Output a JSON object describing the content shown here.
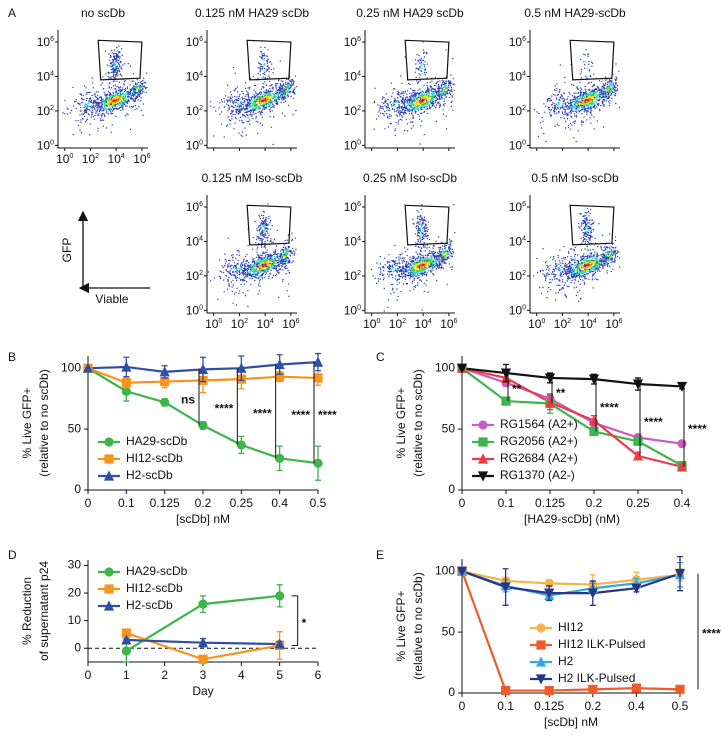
{
  "chart_data": [
    {
      "type": "flow",
      "panel": "A",
      "plots": [
        {
          "title": "no scDb"
        },
        {
          "title": "0.125 nM HA29 scDb"
        },
        {
          "title": "0.25 nM HA29 scDb"
        },
        {
          "title": "0.5 nM HA29-scDb"
        },
        {
          "title": "0.125 nM Iso-scDb"
        },
        {
          "title": "0.25 nM Iso-scDb"
        },
        {
          "title": "0.5 nM Iso-scDb"
        }
      ],
      "xlabel": "Viable",
      "ylabel": "GFP",
      "log": true,
      "xlim": [
        0.3,
        3000000
      ],
      "ylim": [
        0.7,
        5000000
      ],
      "xticks": [
        {
          "value": 1,
          "label": "10",
          "exponent": "0"
        },
        {
          "value": 100,
          "label": "10",
          "exponent": "2"
        },
        {
          "value": 10000,
          "label": "10",
          "exponent": "4"
        },
        {
          "value": 1000000,
          "label": "10",
          "exponent": "6"
        }
      ],
      "yticks": [
        {
          "value": 1,
          "label": "10",
          "exponent": "0"
        },
        {
          "value": 100,
          "label": "10",
          "exponent": "2"
        },
        {
          "value": 10000,
          "label": "10",
          "exponent": "4"
        },
        {
          "value": 1000000,
          "label": "10",
          "exponent": "6"
        }
      ]
    },
    {
      "type": "line",
      "panel": "B",
      "xlabel": "[scDb] nM",
      "ylabel": [
        "% Live GFP+",
        "(relative to no scDb)"
      ],
      "categories": [
        "0",
        "0.1",
        "0.125",
        "0.2",
        "0.25",
        "0.4",
        "0.5"
      ],
      "ylim": [
        0,
        110
      ],
      "yticks": [
        0,
        50,
        100
      ],
      "legend": "lower left",
      "series": [
        {
          "name": "HA29-scDb",
          "color": "#3cb54a",
          "marker": "circle",
          "values": [
            100,
            81,
            72,
            53,
            37,
            26,
            22
          ],
          "errors": [
            0,
            8,
            3,
            3,
            7,
            10,
            14
          ]
        },
        {
          "name": "HI12-scDb",
          "color": "#f7941d",
          "marker": "square",
          "values": [
            100,
            88,
            89,
            90,
            91,
            93,
            92
          ],
          "errors": [
            0,
            4,
            5,
            10,
            8,
            4,
            6
          ]
        },
        {
          "name": "H2-scDb",
          "color": "#2e4fa3",
          "marker": "triangle-up",
          "values": [
            100,
            101,
            97,
            99,
            100,
            103,
            105
          ],
          "errors": [
            0,
            8,
            5,
            10,
            10,
            8,
            7
          ]
        }
      ],
      "annotations": [
        {
          "text": "ns",
          "category": "0.2"
        },
        {
          "text": "****",
          "category": "0.25"
        },
        {
          "text": "****",
          "category": "0.4"
        },
        {
          "text": "****",
          "category": "0.5"
        },
        {
          "text": "****",
          "category": "0.5"
        }
      ]
    },
    {
      "type": "line",
      "panel": "C",
      "xlabel": "[HA29-scDb] (nM)",
      "ylabel": [
        "% Live GFP+",
        "(relative to no scDb)"
      ],
      "categories": [
        "0",
        "0.1",
        "0.125",
        "0.2",
        "0.25",
        "0.4"
      ],
      "ylim": [
        0,
        110
      ],
      "yticks": [
        0,
        50,
        100
      ],
      "legend": "lower left",
      "series": [
        {
          "name": "RG1564 (A2+)",
          "color": "#c55ec5",
          "marker": "circle",
          "values": [
            100,
            88,
            75,
            55,
            43,
            38
          ],
          "errors": [
            0,
            3,
            4,
            3,
            3,
            2
          ]
        },
        {
          "name": "RG2056 (A2+)",
          "color": "#3cb54a",
          "marker": "square",
          "values": [
            100,
            73,
            71,
            48,
            40,
            20
          ],
          "errors": [
            0,
            3,
            8,
            3,
            3,
            2
          ]
        },
        {
          "name": "RG2684 (A2+)",
          "color": "#ee3b4a",
          "marker": "triangle-up",
          "values": [
            100,
            92,
            72,
            57,
            28,
            19
          ],
          "errors": [
            0,
            4,
            6,
            4,
            3,
            2
          ]
        },
        {
          "name": "RG1370 (A2-)",
          "color": "#111111",
          "marker": "triangle-down",
          "values": [
            100,
            96,
            92,
            91,
            87,
            85
          ],
          "errors": [
            0,
            7,
            4,
            4,
            5,
            2
          ]
        }
      ],
      "annotations": [
        {
          "text": "**",
          "category": "0.1"
        },
        {
          "text": "**",
          "category": "0.125"
        },
        {
          "text": "****",
          "category": "0.2"
        },
        {
          "text": "****",
          "category": "0.25"
        },
        {
          "text": "****",
          "category": "0.4"
        }
      ]
    },
    {
      "type": "line",
      "panel": "D",
      "xlabel": "Day",
      "ylabel": [
        "% Reduction",
        "of supernatant p24"
      ],
      "x": [
        1,
        3,
        5
      ],
      "xlim": [
        0,
        6
      ],
      "xticks": [
        0,
        1,
        2,
        3,
        4,
        5,
        6
      ],
      "ylim": [
        -5,
        32
      ],
      "yticks": [
        0,
        10,
        20,
        30
      ],
      "legend": "upper left",
      "zero_line": true,
      "series": [
        {
          "name": "HA29-scDb",
          "color": "#3cb54a",
          "marker": "circle",
          "values": [
            -1,
            16,
            19
          ],
          "errors": [
            4,
            3,
            4
          ]
        },
        {
          "name": "HI12-scDb",
          "color": "#f7941d",
          "marker": "square",
          "values": [
            5.5,
            -4,
            1
          ],
          "errors": [
            1,
            0.5,
            5
          ]
        },
        {
          "name": "H2-scDb",
          "color": "#2e4fa3",
          "marker": "triangle-up",
          "values": [
            3,
            2,
            1.5
          ],
          "errors": [
            0.5,
            1.5,
            1
          ]
        }
      ],
      "annotations": [
        {
          "text": "*",
          "category": 5
        }
      ]
    },
    {
      "type": "line",
      "panel": "E",
      "xlabel": "[scDb] nM",
      "ylabel": [
        "% Live GFP+",
        "(relative to no scDb)"
      ],
      "categories": [
        "0",
        "0.1",
        "0.125",
        "0.2",
        "0.4",
        "0.5"
      ],
      "ylim": [
        0,
        110
      ],
      "yticks": [
        0,
        50,
        100
      ],
      "legend": "lower right",
      "series": [
        {
          "name": "HI12",
          "color": "#f9b24a",
          "marker": "circle",
          "values": [
            100,
            92,
            90,
            89,
            93,
            97
          ],
          "errors": [
            0,
            3,
            3,
            8,
            6,
            5
          ]
        },
        {
          "name": "HI12 ILK-Pulsed",
          "color": "#f15a29",
          "marker": "square",
          "values": [
            100,
            2,
            2,
            3,
            4,
            3
          ],
          "errors": [
            0,
            1,
            1,
            1,
            1,
            1
          ]
        },
        {
          "name": "H2",
          "color": "#35a8e0",
          "marker": "triangle-up",
          "values": [
            100,
            88,
            80,
            86,
            90,
            97
          ],
          "errors": [
            0,
            5,
            3,
            4,
            4,
            10
          ]
        },
        {
          "name": "H2 ILK-Pulsed",
          "color": "#28368a",
          "marker": "triangle-down",
          "values": [
            100,
            87,
            82,
            82,
            86,
            98
          ],
          "errors": [
            0,
            15,
            6,
            10,
            3,
            14
          ]
        }
      ],
      "annotations": [
        {
          "text": "****",
          "category": "0.5"
        }
      ]
    }
  ]
}
